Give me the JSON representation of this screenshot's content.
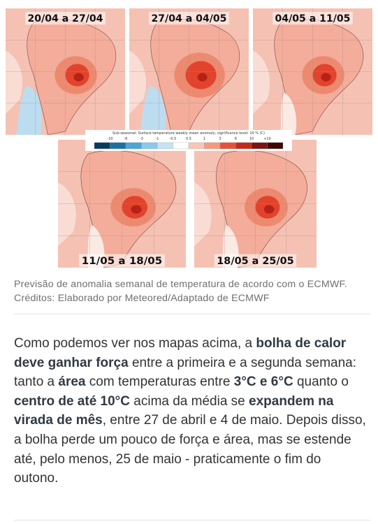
{
  "figure": {
    "maps": [
      {
        "label": "20/04 a 27/04"
      },
      {
        "label": "27/04 a 04/05"
      },
      {
        "label": "04/05 a 11/05"
      },
      {
        "label": "11/05 a 18/05"
      },
      {
        "label": "18/05 a 25/05"
      }
    ],
    "colorbar": {
      "title": "Sub-seasonal: Surface temperature weekly mean anomaly, significance level: 10 % (C)",
      "ticks": [
        "-10",
        "-6",
        "-3",
        "-1",
        "-0.5",
        "0.5",
        "1",
        "3",
        "6",
        "10",
        "+10"
      ]
    },
    "caption": "Previsão de anomalia semanal de temperatura de acordo com o ECMWF. Créditos: Elaborado por Meteored/Adaptado de ECMWF"
  },
  "article": {
    "paragraph": [
      {
        "text": "Como podemos ver nos mapas acima, a "
      },
      {
        "text": "bolha de calor deve ganhar força",
        "strong": true
      },
      {
        "text": " entre a primeira e a segunda semana: tanto a "
      },
      {
        "text": "área",
        "strong": true
      },
      {
        "text": " com temperaturas entre "
      },
      {
        "text": "3°C e 6°C",
        "strong": true
      },
      {
        "text": " quanto o "
      },
      {
        "text": "centro de até 10°C",
        "strong": true
      },
      {
        "text": " acima da média se "
      },
      {
        "text": "expandem na virada de mês",
        "strong": true
      },
      {
        "text": ", entre 27 de abril e 4 de maio. Depois disso, a bolha perde um pouco de força e área, mas se estende até, pelo menos, 25 de maio - praticamente o fim do outono."
      }
    ]
  }
}
